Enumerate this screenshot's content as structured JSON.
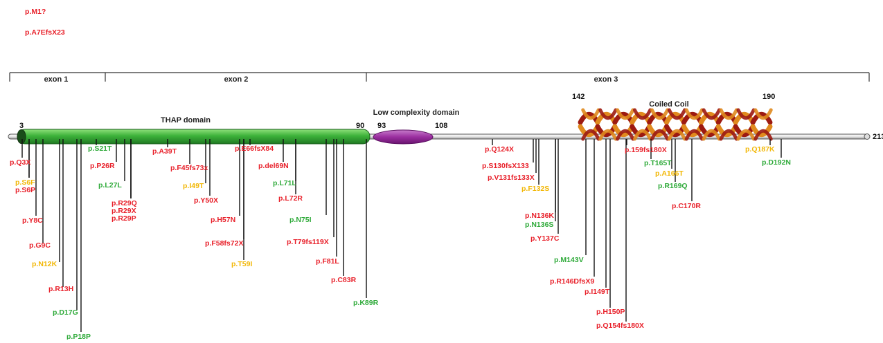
{
  "colors": {
    "red": "#e8202a",
    "green": "#2faa3a",
    "yellow": "#f2b705",
    "thap": "#3db23a",
    "lowComplexity": "#9b2fa0",
    "helixDark": "#9c1a12",
    "helixLight": "#e08a1e"
  },
  "top_mutations": [
    {
      "text": "p.M1?",
      "color": "red"
    },
    {
      "text": "p.A7EfsX23",
      "color": "red"
    }
  ],
  "exons": [
    {
      "label": "exon 1"
    },
    {
      "label": "exon 2"
    },
    {
      "label": "exon 3"
    }
  ],
  "domains": {
    "thap": "THAP domain",
    "low_complexity": "Low complexity domain",
    "coiled_coil": "Coiled Coil"
  },
  "positions": {
    "thap_start": "3",
    "thap_end": "90",
    "lc_start": "93",
    "lc_end": "108",
    "cc_start": "142",
    "cc_end": "190",
    "protein_end": "213"
  },
  "mutations": [
    {
      "text": "p.Q3X",
      "color": "red"
    },
    {
      "text": "p.S6F",
      "color": "yellow"
    },
    {
      "text": "p.S6P",
      "color": "red"
    },
    {
      "text": "p.Y8C",
      "color": "red"
    },
    {
      "text": "p.G9C",
      "color": "red"
    },
    {
      "text": "p.N12K",
      "color": "yellow"
    },
    {
      "text": "p.R13H",
      "color": "red"
    },
    {
      "text": "p.D17G",
      "color": "green"
    },
    {
      "text": "p.P18P",
      "color": "green"
    },
    {
      "text": "p.S21T",
      "color": "green"
    },
    {
      "text": "p.P26R",
      "color": "red"
    },
    {
      "text": "p.L27L",
      "color": "green"
    },
    {
      "text": "p.R29Q",
      "color": "red"
    },
    {
      "text": "p.R29X",
      "color": "red"
    },
    {
      "text": "p.R29P",
      "color": "red"
    },
    {
      "text": "p.A39T",
      "color": "red"
    },
    {
      "text": "p.F45fs73x",
      "color": "red"
    },
    {
      "text": "p.I49T",
      "color": "yellow"
    },
    {
      "text": "p.Y50X",
      "color": "red"
    },
    {
      "text": "p.H57N",
      "color": "red"
    },
    {
      "text": "p.F58fs72X",
      "color": "red"
    },
    {
      "text": "p.T59I",
      "color": "yellow"
    },
    {
      "text": "p.E66fsX84",
      "color": "red"
    },
    {
      "text": "p.del69N",
      "color": "red"
    },
    {
      "text": "p.L71L",
      "color": "green"
    },
    {
      "text": "p.L72R",
      "color": "red"
    },
    {
      "text": "p.N75I",
      "color": "green"
    },
    {
      "text": "p.T79fs119X",
      "color": "red"
    },
    {
      "text": "p.F81L",
      "color": "red"
    },
    {
      "text": "p.C83R",
      "color": "red"
    },
    {
      "text": "p.K89R",
      "color": "green"
    },
    {
      "text": "p.Q124X",
      "color": "red"
    },
    {
      "text": "p.S130fsX133",
      "color": "red"
    },
    {
      "text": "p.V131fs133X",
      "color": "red"
    },
    {
      "text": "p.F132S",
      "color": "yellow"
    },
    {
      "text": "p.N136K",
      "color": "red"
    },
    {
      "text": "p.N136S",
      "color": "green"
    },
    {
      "text": "p.Y137C",
      "color": "red"
    },
    {
      "text": "p.M143V",
      "color": "green"
    },
    {
      "text": "p.R146DfsX9",
      "color": "red"
    },
    {
      "text": "p.I149T",
      "color": "red"
    },
    {
      "text": "p.H150P",
      "color": "red"
    },
    {
      "text": "p.Q154fs180X",
      "color": "red"
    },
    {
      "text": "p.159fs180X",
      "color": "red"
    },
    {
      "text": "p.T165T",
      "color": "green"
    },
    {
      "text": "p.A166T",
      "color": "yellow"
    },
    {
      "text": "p.R169Q",
      "color": "green"
    },
    {
      "text": "p.C170R",
      "color": "red"
    },
    {
      "text": "p.Q187K",
      "color": "yellow"
    },
    {
      "text": "p.D192N",
      "color": "green"
    }
  ]
}
